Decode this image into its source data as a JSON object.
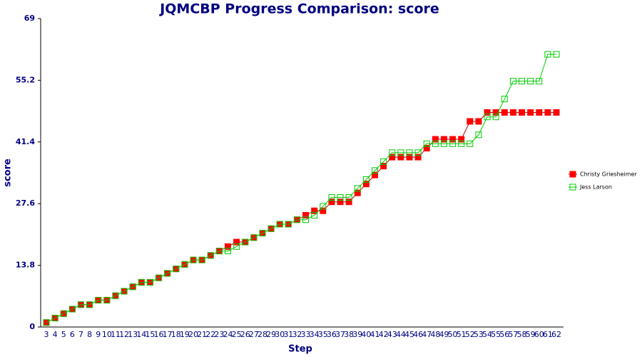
{
  "chart_data": {
    "type": "line",
    "title": "JQMCBP Progress Comparison: score",
    "x_label": "Step",
    "y_label": "score",
    "categories": [
      "3",
      "4",
      "5",
      "6",
      "7",
      "8",
      "9",
      "10",
      "11",
      "12",
      "13",
      "14",
      "15",
      "16",
      "17",
      "18",
      "19",
      "20",
      "21",
      "22",
      "23",
      "24",
      "25",
      "26",
      "27",
      "28",
      "29",
      "30",
      "31",
      "32",
      "33",
      "34",
      "35",
      "36",
      "37",
      "38",
      "39",
      "40",
      "41",
      "42",
      "43",
      "44",
      "45",
      "46",
      "47",
      "48",
      "49",
      "50",
      "51",
      "52",
      "53",
      "54",
      "55",
      "56",
      "57",
      "58",
      "59",
      "60",
      "61",
      "62"
    ],
    "series": [
      {
        "name": "Christy Griesheimer",
        "color": "#ff0000",
        "line_color": "#b00000",
        "marker": "filled-square",
        "values": [
          1,
          2,
          3,
          4,
          5,
          5,
          6,
          6,
          7,
          8,
          9,
          10,
          10,
          11,
          12,
          13,
          14,
          15,
          15,
          16,
          17,
          18,
          19,
          19,
          20,
          21,
          22,
          23,
          23,
          24,
          25,
          26,
          26,
          28,
          28,
          28,
          30,
          32,
          34,
          36,
          38,
          38,
          38,
          38,
          40,
          42,
          42,
          42,
          42,
          46,
          46,
          48,
          48,
          48,
          48,
          48,
          48,
          48,
          48,
          48
        ]
      },
      {
        "name": "Jess Larson",
        "color": "#00cc00",
        "line_color": "#00cc00",
        "marker": "open-square",
        "values": [
          1,
          2,
          3,
          4,
          5,
          5,
          6,
          6,
          7,
          8,
          9,
          10,
          10,
          11,
          12,
          13,
          14,
          15,
          15,
          16,
          17,
          17,
          18,
          19,
          20,
          21,
          22,
          23,
          23,
          24,
          24,
          25,
          27,
          29,
          29,
          29,
          31,
          33,
          35,
          37,
          39,
          39,
          39,
          39,
          41,
          41,
          41,
          41,
          41,
          41,
          43,
          47,
          47,
          51,
          55,
          55,
          55,
          55,
          61,
          61
        ]
      }
    ],
    "ylim": [
      0,
      69
    ],
    "yticks": [
      0,
      13.8,
      27.6,
      41.4,
      55.2,
      69
    ],
    "grid": false,
    "legend_position": "right"
  }
}
